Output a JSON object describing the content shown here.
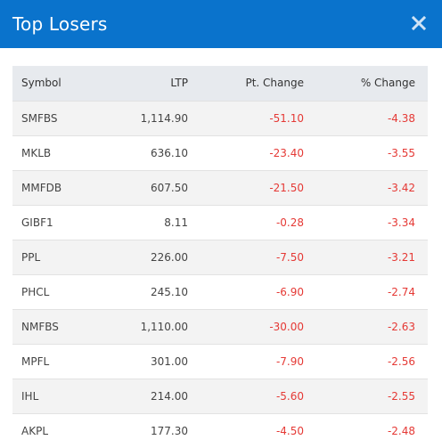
{
  "modal": {
    "title": "Top Losers"
  },
  "table": {
    "headers": {
      "symbol": "Symbol",
      "ltp": "LTP",
      "pt_change": "Pt. Change",
      "pct_change": "% Change"
    },
    "rows": [
      {
        "symbol": "SMFBS",
        "ltp": "1,114.90",
        "pt_change": "-51.10",
        "pct_change": "-4.38"
      },
      {
        "symbol": "MKLB",
        "ltp": "636.10",
        "pt_change": "-23.40",
        "pct_change": "-3.55"
      },
      {
        "symbol": "MMFDB",
        "ltp": "607.50",
        "pt_change": "-21.50",
        "pct_change": "-3.42"
      },
      {
        "symbol": "GIBF1",
        "ltp": "8.11",
        "pt_change": "-0.28",
        "pct_change": "-3.34"
      },
      {
        "symbol": "PPL",
        "ltp": "226.00",
        "pt_change": "-7.50",
        "pct_change": "-3.21"
      },
      {
        "symbol": "PHCL",
        "ltp": "245.10",
        "pt_change": "-6.90",
        "pct_change": "-2.74"
      },
      {
        "symbol": "NMFBS",
        "ltp": "1,110.00",
        "pt_change": "-30.00",
        "pct_change": "-2.63"
      },
      {
        "symbol": "MPFL",
        "ltp": "301.00",
        "pt_change": "-7.90",
        "pct_change": "-2.56"
      },
      {
        "symbol": "IHL",
        "ltp": "214.00",
        "pt_change": "-5.60",
        "pct_change": "-2.55"
      },
      {
        "symbol": "AKPL",
        "ltp": "177.30",
        "pt_change": "-4.50",
        "pct_change": "-2.48"
      }
    ]
  },
  "icons": {
    "close": "close-icon"
  },
  "colors": {
    "header_bg": "#0a73cc",
    "negative": "#e53935",
    "table_header_bg": "#e7eaee",
    "row_alt_bg": "#f3f3f3"
  }
}
